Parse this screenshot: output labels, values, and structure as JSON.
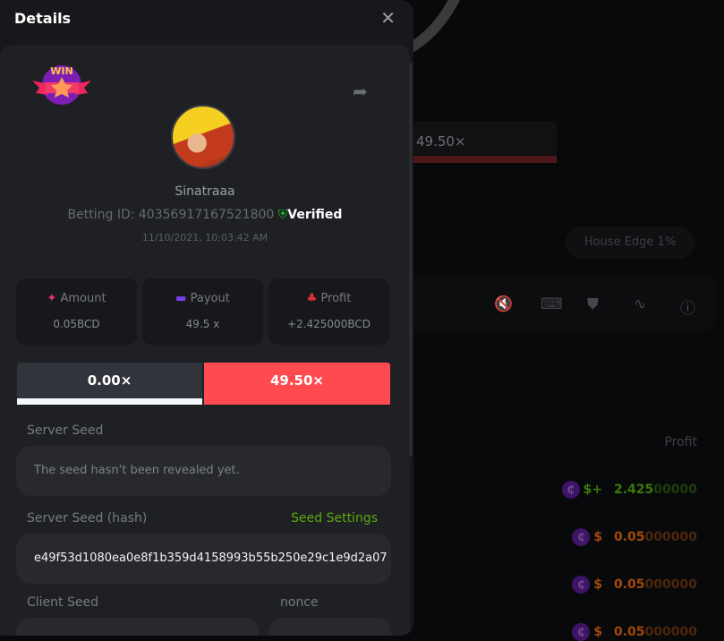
{
  "background": {
    "bar_value": "49.50×",
    "house_edge": "House Edge 1%",
    "profit_header": "Profit",
    "toolbar_icons": [
      "sound-off-icon",
      "keyboard-icon",
      "acorn-icon",
      "graph-icon",
      "help-icon"
    ],
    "rows": [
      {
        "prefix": "$+",
        "bright": "2.425",
        "dim": "00000",
        "color": "#3b7a0a"
      },
      {
        "prefix": "$",
        "bright": "0.05",
        "dim": "000000",
        "color": "#a3470d"
      },
      {
        "prefix": "$",
        "bright": "0.05",
        "dim": "000000",
        "color": "#a3470d"
      },
      {
        "prefix": "$",
        "bright": "0.05",
        "dim": "000000",
        "color": "#a3470d"
      }
    ]
  },
  "modal": {
    "title": "Details",
    "user": {
      "name": "Sinatraaa",
      "betting_id": "Betting ID: 40356917167521800",
      "verified": "Verified",
      "date": "11/10/2021, 10:03:42 AM",
      "badge": "WIN"
    },
    "stats": [
      {
        "label": "Amount",
        "value": "0.05BCD",
        "icon": "coins-icon",
        "color": "#e3336d"
      },
      {
        "label": "Payout",
        "value": "49.5 x",
        "icon": "card-icon",
        "color": "#7a40ee"
      },
      {
        "label": "Profit",
        "value": "+2.425000BCD",
        "icon": "hand-money-icon",
        "color": "#e8303a"
      }
    ],
    "result": {
      "left": "0.00×",
      "right": "49.50×",
      "accent": "#ff4a4f"
    },
    "server_seed": {
      "label": "Server Seed",
      "value": "The seed hasn't been revealed yet."
    },
    "server_seed_hash": {
      "label": "Server Seed (hash)",
      "link": "Seed Settings",
      "value": "e49f53d1080ea0e8f1b359d4158993b55b250e29c1e9d2a07"
    },
    "client_seed": {
      "label": "Client Seed"
    },
    "nonce": {
      "label": "nonce"
    }
  }
}
